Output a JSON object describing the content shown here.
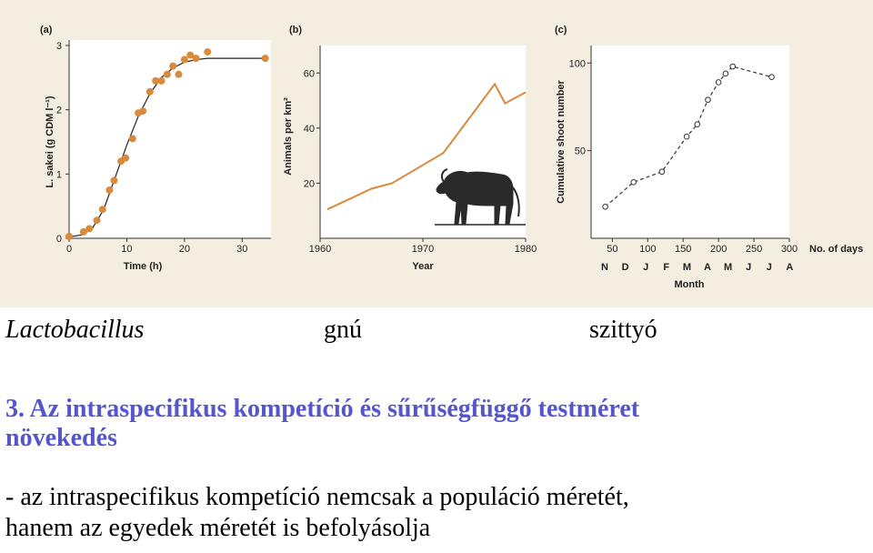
{
  "colors": {
    "panel_background": "#f4eee0",
    "plot_background": "#ffffff",
    "orange": "#d98a3c",
    "heading_blue": "#5555cc"
  },
  "captions": {
    "lactobacillus": "Lactobacillus",
    "gnu": "gnú",
    "szittyo": "szittyó"
  },
  "heading": {
    "line1": "3. Az intraspecifikus kompetíció és sűrűségfüggő testméret",
    "line2": "növekedés"
  },
  "body": {
    "line1": "- az intraspecifikus kompetíció nemcsak a populáció méretét,",
    "line2": "hanem az egyedek méretét is befolyásolja"
  },
  "icons": [
    "wildebeest-icon"
  ],
  "chart_data": [
    {
      "type": "scatter",
      "panel_label": "(a)",
      "xlabel": "Time (h)",
      "ylabel": "L. sakei (g CDM l⁻¹)",
      "xlim": [
        0,
        35
      ],
      "ylim": [
        0,
        3
      ],
      "xticks": [
        "0",
        "10",
        "20",
        "30"
      ],
      "yticks": [
        "0",
        "1",
        "2",
        "3"
      ],
      "points": [
        [
          0,
          0.03
        ],
        [
          2.5,
          0.1
        ],
        [
          3.5,
          0.15
        ],
        [
          4.8,
          0.28
        ],
        [
          5.8,
          0.45
        ],
        [
          7,
          0.75
        ],
        [
          7.8,
          0.9
        ],
        [
          9,
          1.2
        ],
        [
          9.8,
          1.25
        ],
        [
          11,
          1.55
        ],
        [
          12,
          1.95
        ],
        [
          12.8,
          1.98
        ],
        [
          14,
          2.28
        ],
        [
          15,
          2.45
        ],
        [
          16,
          2.45
        ],
        [
          17,
          2.55
        ],
        [
          18,
          2.68
        ],
        [
          19,
          2.55
        ],
        [
          20,
          2.78
        ],
        [
          21,
          2.85
        ],
        [
          22,
          2.8
        ],
        [
          24,
          2.9
        ],
        [
          34,
          2.8
        ]
      ],
      "fit_curve": [
        [
          0,
          0.02
        ],
        [
          2,
          0.05
        ],
        [
          4,
          0.15
        ],
        [
          6,
          0.45
        ],
        [
          8,
          0.95
        ],
        [
          10,
          1.45
        ],
        [
          12,
          1.9
        ],
        [
          14,
          2.25
        ],
        [
          16,
          2.5
        ],
        [
          18,
          2.65
        ],
        [
          20,
          2.74
        ],
        [
          22,
          2.78
        ],
        [
          24,
          2.8
        ],
        [
          34,
          2.8
        ]
      ]
    },
    {
      "type": "line",
      "panel_label": "(b)",
      "xlabel": "Year",
      "ylabel": "Animals per km²",
      "xlim": [
        1960,
        1980
      ],
      "ylim": [
        0,
        70
      ],
      "xticks": [
        "1960",
        "1970",
        "1980"
      ],
      "yticks": [
        "20",
        "40",
        "60"
      ],
      "x": [
        1960.7,
        1965,
        1967,
        1972,
        1977,
        1978,
        1980
      ],
      "y": [
        10.5,
        18,
        20,
        31,
        56,
        49,
        53
      ]
    },
    {
      "type": "line",
      "panel_label": "(c)",
      "ylabel": "Cumulative shoot number",
      "xlabel_days": "No. of days",
      "xlabel_month": "Month",
      "xlim": [
        20,
        300
      ],
      "ylim": [
        0,
        110
      ],
      "xticks": [
        "50",
        "100",
        "150",
        "200",
        "250",
        "300"
      ],
      "yticks": [
        "50",
        "100"
      ],
      "month_ticks": [
        "N",
        "D",
        "J",
        "F",
        "M",
        "A",
        "M",
        "J",
        "J",
        "A"
      ],
      "x": [
        40,
        80,
        120,
        155,
        170,
        185,
        200,
        210,
        220,
        275
      ],
      "y": [
        18,
        32,
        38,
        58,
        65,
        79,
        89,
        94,
        98,
        92
      ]
    }
  ]
}
